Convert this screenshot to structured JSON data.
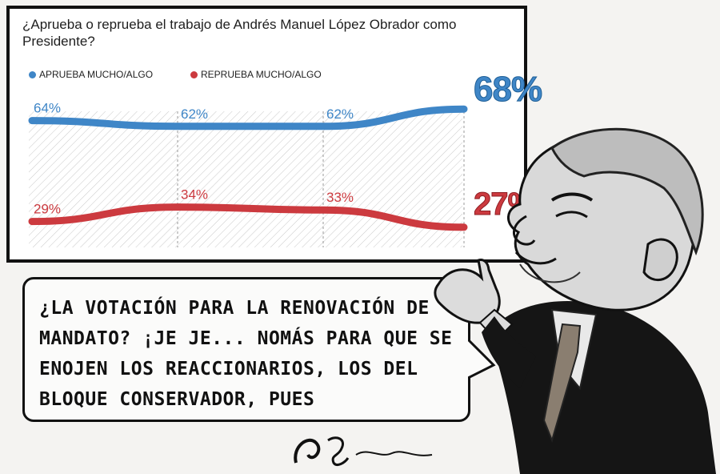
{
  "chart": {
    "title": "¿Aprueba o reprueba el trabajo de Andrés Manuel López Obrador como Presidente?",
    "legend_approve": "APRUEBA MUCHO/ALGO",
    "legend_disapprove": "REPRUEBA MUCHO/ALGO",
    "latest_approve": "68%",
    "latest_disapprove": "27%",
    "colors": {
      "approve": "#3f86c7",
      "disapprove": "#cc3a3f"
    }
  },
  "chart_data": {
    "type": "line",
    "title": "¿Aprueba o reprueba el trabajo de Andrés Manuel López Obrador como Presidente?",
    "x": [
      1,
      2,
      3,
      4
    ],
    "series": [
      {
        "name": "APRUEBA MUCHO/ALGO",
        "values": [
          64,
          62,
          62,
          68
        ],
        "labels": [
          "64%",
          "62%",
          "62%",
          "68%"
        ],
        "color": "#3f86c7"
      },
      {
        "name": "REPRUEBA MUCHO/ALGO",
        "values": [
          29,
          34,
          33,
          27
        ],
        "labels": [
          "29%",
          "34%",
          "33%",
          "27%"
        ],
        "color": "#cc3a3f"
      }
    ],
    "legend": "top-left",
    "grid": false
  },
  "speech": {
    "text": "¿La votación para la renovación de mandato? ¡Je je... nomás para que se enojen los reaccionarios, los del bloque conservador, pues"
  }
}
